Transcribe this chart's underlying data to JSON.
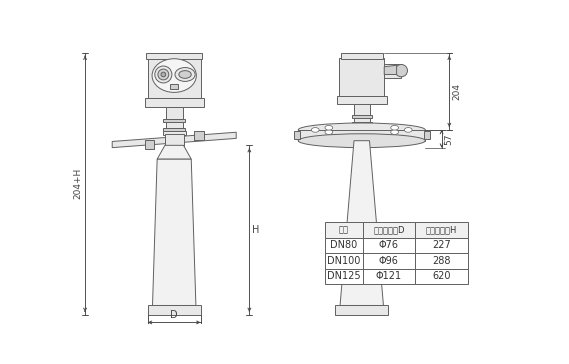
{
  "bg_color": "#ffffff",
  "line_color": "#606060",
  "gray_fill": "#e8e8e8",
  "gray_dark": "#d0d0d0",
  "gray_light": "#f2f2f2",
  "table_header": [
    "法兰",
    "喇叭口直径D",
    "喇叭口高度H"
  ],
  "table_rows": [
    [
      "DN80",
      "Φ76",
      "227"
    ],
    [
      "DN100",
      "Φ96",
      "288"
    ],
    [
      "DN125",
      "Φ121",
      "620"
    ]
  ],
  "dim_label_204": "204",
  "dim_label_57": "57",
  "dim_label_H": "H",
  "dim_label_204H": "204+H",
  "dim_label_D": "D"
}
